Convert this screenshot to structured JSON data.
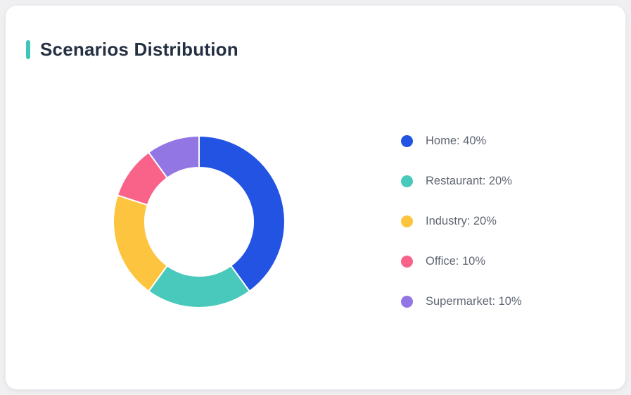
{
  "page": {
    "background_color": "#f0f0f2",
    "card_background_color": "#ffffff"
  },
  "header": {
    "title": "Scenarios Distribution",
    "accent_color": "#3ec6b9",
    "title_color": "#243042"
  },
  "chart_data": {
    "type": "pie",
    "subtype": "donut",
    "title": "Scenarios Distribution",
    "direction": "clockwise",
    "start_angle_deg": 90,
    "inner_radius_ratio": 0.63,
    "total": 100,
    "unit": "%",
    "legend_position": "right",
    "categories": [
      "Home",
      "Restaurant",
      "Industry",
      "Office",
      "Supermarket"
    ],
    "values": [
      40,
      20,
      20,
      10,
      10
    ],
    "colors": [
      "#2253e2",
      "#48c9bb",
      "#fdc53f",
      "#f9638a",
      "#9176e4"
    ],
    "slices": [
      {
        "label": "Home",
        "value": 40,
        "unit": "%",
        "color": "#2253e2",
        "legend_text": "Home: 40%"
      },
      {
        "label": "Restaurant",
        "value": 20,
        "unit": "%",
        "color": "#48c9bb",
        "legend_text": "Restaurant: 20%"
      },
      {
        "label": "Industry",
        "value": 20,
        "unit": "%",
        "color": "#fdc53f",
        "legend_text": "Industry: 20%"
      },
      {
        "label": "Office",
        "value": 10,
        "unit": "%",
        "color": "#f9638a",
        "legend_text": "Office: 10%"
      },
      {
        "label": "Supermarket",
        "value": 10,
        "unit": "%",
        "color": "#9176e4",
        "legend_text": "Supermarket: 10%"
      }
    ]
  }
}
